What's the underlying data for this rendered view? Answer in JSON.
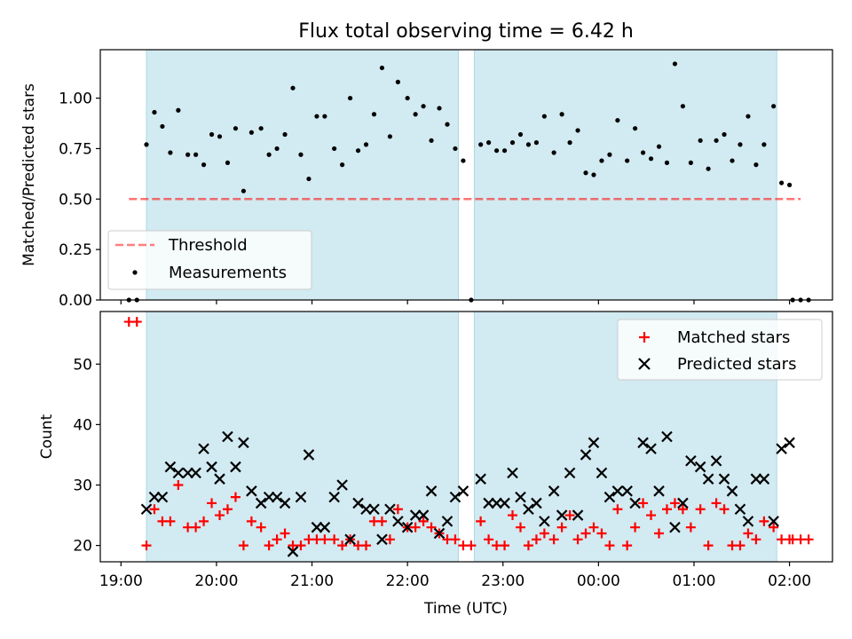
{
  "chart_data": [
    {
      "type": "scatter",
      "title": "Flux total observing time = 6.42 h",
      "xlabel": "",
      "ylabel": "Matched/Predicted stars",
      "xlim": [
        "18:47",
        "02:27"
      ],
      "ylim": [
        0,
        1.24
      ],
      "xticks": [
        "19:00",
        "20:00",
        "21:00",
        "22:00",
        "23:00",
        "00:00",
        "01:00",
        "02:00"
      ],
      "yticks": [
        "0.00",
        "0.25",
        "0.50",
        "0.75",
        "1.00"
      ],
      "shaded_intervals": [
        [
          "19:16",
          "22:32"
        ],
        [
          "22:42",
          "01:52"
        ]
      ],
      "threshold": {
        "name": "Threshold",
        "value": 0.5,
        "x_start": "19:05",
        "x_end": "02:07"
      },
      "series": [
        {
          "name": "Measurements",
          "points": [
            [
              "19:05",
              0.0
            ],
            [
              "19:10",
              0.0
            ],
            [
              "19:16",
              0.77
            ],
            [
              "19:21",
              0.93
            ],
            [
              "19:26",
              0.86
            ],
            [
              "19:31",
              0.73
            ],
            [
              "19:36",
              0.94
            ],
            [
              "19:42",
              0.72
            ],
            [
              "19:47",
              0.72
            ],
            [
              "19:52",
              0.67
            ],
            [
              "19:57",
              0.82
            ],
            [
              "20:02",
              0.81
            ],
            [
              "20:07",
              0.68
            ],
            [
              "20:12",
              0.85
            ],
            [
              "20:17",
              0.54
            ],
            [
              "20:22",
              0.83
            ],
            [
              "20:28",
              0.85
            ],
            [
              "20:33",
              0.72
            ],
            [
              "20:38",
              0.75
            ],
            [
              "20:43",
              0.82
            ],
            [
              "20:48",
              1.05
            ],
            [
              "20:53",
              0.72
            ],
            [
              "20:58",
              0.6
            ],
            [
              "21:03",
              0.91
            ],
            [
              "21:08",
              0.91
            ],
            [
              "21:14",
              0.75
            ],
            [
              "21:19",
              0.67
            ],
            [
              "21:24",
              1.0
            ],
            [
              "21:29",
              0.74
            ],
            [
              "21:34",
              0.77
            ],
            [
              "21:39",
              0.92
            ],
            [
              "21:44",
              1.15
            ],
            [
              "21:49",
              0.81
            ],
            [
              "21:54",
              1.08
            ],
            [
              "22:00",
              1.0
            ],
            [
              "22:05",
              0.92
            ],
            [
              "22:10",
              0.96
            ],
            [
              "22:15",
              0.79
            ],
            [
              "22:20",
              0.95
            ],
            [
              "22:25",
              0.87
            ],
            [
              "22:30",
              0.75
            ],
            [
              "22:35",
              0.69
            ],
            [
              "22:40",
              0.0
            ],
            [
              "22:46",
              0.77
            ],
            [
              "22:51",
              0.78
            ],
            [
              "22:56",
              0.74
            ],
            [
              "23:01",
              0.74
            ],
            [
              "23:06",
              0.78
            ],
            [
              "23:11",
              0.82
            ],
            [
              "23:16",
              0.77
            ],
            [
              "23:21",
              0.78
            ],
            [
              "23:26",
              0.91
            ],
            [
              "23:32",
              0.73
            ],
            [
              "23:37",
              0.92
            ],
            [
              "23:42",
              0.78
            ],
            [
              "23:47",
              0.84
            ],
            [
              "23:52",
              0.63
            ],
            [
              "23:57",
              0.62
            ],
            [
              "00:02",
              0.69
            ],
            [
              "00:07",
              0.72
            ],
            [
              "00:12",
              0.89
            ],
            [
              "00:18",
              0.69
            ],
            [
              "00:23",
              0.85
            ],
            [
              "00:28",
              0.73
            ],
            [
              "00:33",
              0.7
            ],
            [
              "00:38",
              0.76
            ],
            [
              "00:43",
              0.68
            ],
            [
              "00:48",
              1.17
            ],
            [
              "00:53",
              0.96
            ],
            [
              "00:58",
              0.68
            ],
            [
              "01:04",
              0.79
            ],
            [
              "01:09",
              0.65
            ],
            [
              "01:14",
              0.79
            ],
            [
              "01:19",
              0.82
            ],
            [
              "01:24",
              0.69
            ],
            [
              "01:29",
              0.77
            ],
            [
              "01:34",
              0.91
            ],
            [
              "01:39",
              0.67
            ],
            [
              "01:44",
              0.77
            ],
            [
              "01:50",
              0.96
            ],
            [
              "01:55",
              0.58
            ],
            [
              "02:00",
              0.57
            ],
            [
              "02:02",
              0.0
            ],
            [
              "02:07",
              0.0
            ],
            [
              "02:12",
              0.0
            ]
          ]
        }
      ],
      "legend": {
        "position": "lower-left",
        "entries": [
          "Threshold",
          "Measurements"
        ]
      }
    },
    {
      "type": "scatter",
      "title": "",
      "xlabel": "Time (UTC)",
      "ylabel": "Count",
      "xlim": [
        "18:47",
        "02:27"
      ],
      "ylim": [
        17.3,
        58.7
      ],
      "xticks": [
        "19:00",
        "20:00",
        "21:00",
        "22:00",
        "23:00",
        "00:00",
        "01:00",
        "02:00"
      ],
      "yticks": [
        "20",
        "30",
        "40",
        "50"
      ],
      "shaded_intervals": [
        [
          "19:16",
          "22:32"
        ],
        [
          "22:42",
          "01:52"
        ]
      ],
      "series": [
        {
          "name": "Matched stars",
          "color": "#ff0000",
          "marker": "plus",
          "points": [
            [
              "19:05",
              57
            ],
            [
              "19:10",
              57
            ],
            [
              "19:16",
              20
            ],
            [
              "19:21",
              26
            ],
            [
              "19:26",
              24
            ],
            [
              "19:31",
              24
            ],
            [
              "19:36",
              30
            ],
            [
              "19:42",
              23
            ],
            [
              "19:47",
              23
            ],
            [
              "19:52",
              24
            ],
            [
              "19:57",
              27
            ],
            [
              "20:02",
              25
            ],
            [
              "20:07",
              26
            ],
            [
              "20:12",
              28
            ],
            [
              "20:17",
              20
            ],
            [
              "20:22",
              24
            ],
            [
              "20:28",
              23
            ],
            [
              "20:33",
              20
            ],
            [
              "20:38",
              21
            ],
            [
              "20:43",
              22
            ],
            [
              "20:48",
              20
            ],
            [
              "20:53",
              20
            ],
            [
              "20:58",
              21
            ],
            [
              "21:03",
              21
            ],
            [
              "21:08",
              21
            ],
            [
              "21:14",
              21
            ],
            [
              "21:19",
              20
            ],
            [
              "21:24",
              21
            ],
            [
              "21:29",
              20
            ],
            [
              "21:34",
              20
            ],
            [
              "21:39",
              24
            ],
            [
              "21:44",
              24
            ],
            [
              "21:49",
              21
            ],
            [
              "21:54",
              26
            ],
            [
              "22:00",
              23
            ],
            [
              "22:05",
              23
            ],
            [
              "22:10",
              24
            ],
            [
              "22:15",
              23
            ],
            [
              "22:20",
              22
            ],
            [
              "22:25",
              21
            ],
            [
              "22:30",
              21
            ],
            [
              "22:35",
              20
            ],
            [
              "22:40",
              20
            ],
            [
              "22:46",
              24
            ],
            [
              "22:51",
              21
            ],
            [
              "22:56",
              20
            ],
            [
              "23:01",
              20
            ],
            [
              "23:06",
              25
            ],
            [
              "23:11",
              23
            ],
            [
              "23:16",
              20
            ],
            [
              "23:21",
              21
            ],
            [
              "23:26",
              22
            ],
            [
              "23:32",
              21
            ],
            [
              "23:37",
              23
            ],
            [
              "23:42",
              25
            ],
            [
              "23:47",
              21
            ],
            [
              "23:52",
              22
            ],
            [
              "23:57",
              23
            ],
            [
              "00:02",
              22
            ],
            [
              "00:07",
              20
            ],
            [
              "00:12",
              26
            ],
            [
              "00:18",
              20
            ],
            [
              "00:23",
              23
            ],
            [
              "00:28",
              27
            ],
            [
              "00:33",
              25
            ],
            [
              "00:38",
              22
            ],
            [
              "00:43",
              26
            ],
            [
              "00:48",
              27
            ],
            [
              "00:53",
              26
            ],
            [
              "00:58",
              23
            ],
            [
              "01:04",
              26
            ],
            [
              "01:09",
              20
            ],
            [
              "01:14",
              27
            ],
            [
              "01:19",
              26
            ],
            [
              "01:24",
              20
            ],
            [
              "01:29",
              20
            ],
            [
              "01:34",
              22
            ],
            [
              "01:39",
              21
            ],
            [
              "01:44",
              24
            ],
            [
              "01:50",
              23
            ],
            [
              "01:55",
              21
            ],
            [
              "02:00",
              21
            ],
            [
              "02:02",
              21
            ],
            [
              "02:07",
              21
            ],
            [
              "02:12",
              21
            ]
          ]
        },
        {
          "name": "Predicted stars",
          "color": "#000000",
          "marker": "x",
          "points": [
            [
              "19:16",
              26
            ],
            [
              "19:21",
              28
            ],
            [
              "19:26",
              28
            ],
            [
              "19:31",
              33
            ],
            [
              "19:36",
              32
            ],
            [
              "19:42",
              32
            ],
            [
              "19:47",
              32
            ],
            [
              "19:52",
              36
            ],
            [
              "19:57",
              33
            ],
            [
              "20:02",
              31
            ],
            [
              "20:07",
              38
            ],
            [
              "20:12",
              33
            ],
            [
              "20:17",
              37
            ],
            [
              "20:22",
              29
            ],
            [
              "20:28",
              27
            ],
            [
              "20:33",
              28
            ],
            [
              "20:38",
              28
            ],
            [
              "20:43",
              27
            ],
            [
              "20:48",
              19
            ],
            [
              "20:53",
              28
            ],
            [
              "20:58",
              35
            ],
            [
              "21:03",
              23
            ],
            [
              "21:08",
              23
            ],
            [
              "21:14",
              28
            ],
            [
              "21:19",
              30
            ],
            [
              "21:24",
              21
            ],
            [
              "21:29",
              27
            ],
            [
              "21:34",
              26
            ],
            [
              "21:39",
              26
            ],
            [
              "21:44",
              21
            ],
            [
              "21:49",
              26
            ],
            [
              "21:54",
              24
            ],
            [
              "22:00",
              23
            ],
            [
              "22:05",
              25
            ],
            [
              "22:10",
              25
            ],
            [
              "22:15",
              29
            ],
            [
              "22:20",
              22
            ],
            [
              "22:25",
              24
            ],
            [
              "22:30",
              28
            ],
            [
              "22:35",
              29
            ],
            [
              "22:46",
              31
            ],
            [
              "22:51",
              27
            ],
            [
              "22:56",
              27
            ],
            [
              "23:01",
              27
            ],
            [
              "23:06",
              32
            ],
            [
              "23:11",
              28
            ],
            [
              "23:16",
              26
            ],
            [
              "23:21",
              27
            ],
            [
              "23:26",
              24
            ],
            [
              "23:32",
              29
            ],
            [
              "23:37",
              25
            ],
            [
              "23:42",
              32
            ],
            [
              "23:47",
              25
            ],
            [
              "23:52",
              35
            ],
            [
              "23:57",
              37
            ],
            [
              "00:02",
              32
            ],
            [
              "00:07",
              28
            ],
            [
              "00:12",
              29
            ],
            [
              "00:18",
              29
            ],
            [
              "00:23",
              27
            ],
            [
              "00:28",
              37
            ],
            [
              "00:33",
              36
            ],
            [
              "00:38",
              29
            ],
            [
              "00:43",
              38
            ],
            [
              "00:48",
              23
            ],
            [
              "00:53",
              27
            ],
            [
              "00:58",
              34
            ],
            [
              "01:04",
              33
            ],
            [
              "01:09",
              31
            ],
            [
              "01:14",
              34
            ],
            [
              "01:19",
              31
            ],
            [
              "01:24",
              29
            ],
            [
              "01:29",
              26
            ],
            [
              "01:34",
              24
            ],
            [
              "01:39",
              31
            ],
            [
              "01:44",
              31
            ],
            [
              "01:50",
              24
            ],
            [
              "01:55",
              36
            ],
            [
              "02:00",
              37
            ]
          ]
        }
      ],
      "legend": {
        "position": "top-right",
        "entries": [
          "Matched stars",
          "Predicted stars"
        ]
      }
    }
  ],
  "colors": {
    "shade": "#add8e6",
    "threshold": "#ff0000",
    "measurement": "#000000",
    "matched": "#ff0000",
    "predicted": "#000000"
  }
}
